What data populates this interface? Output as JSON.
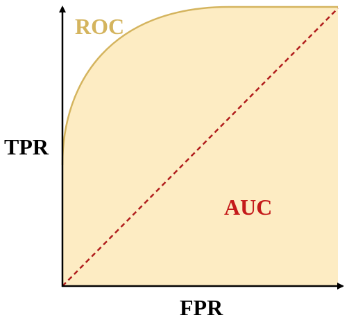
{
  "labels": {
    "curve": "ROC",
    "area": "AUC",
    "y_axis": "TPR",
    "x_axis": "FPR"
  },
  "colors": {
    "area_fill": "#fdecc3",
    "curve": "#d4b45e",
    "curve_label": "#d4b45e",
    "diagonal": "#b01c1c",
    "area_label": "#c41a1a",
    "axis": "#000000",
    "axis_label": "#000000"
  }
}
